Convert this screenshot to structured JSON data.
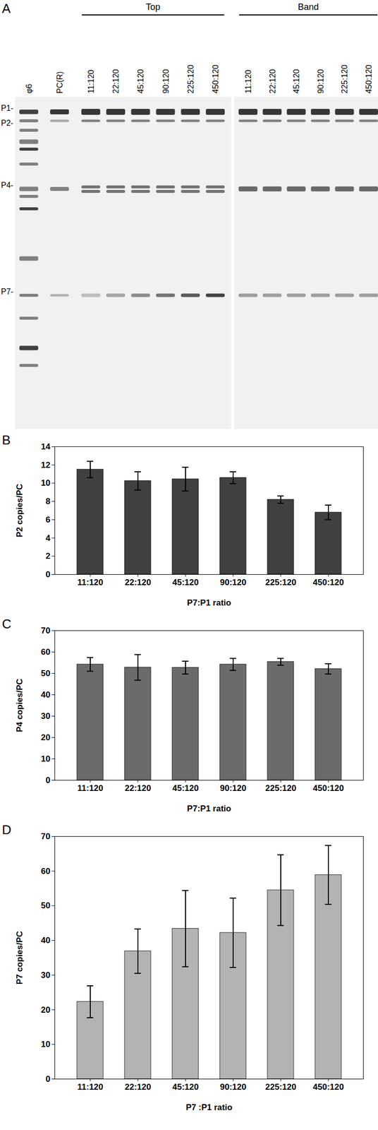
{
  "gel": {
    "panel_label": "A",
    "band_labels": [
      "P1-",
      "P2-",
      "P4-",
      "P7-"
    ],
    "single_lanes": [
      "φ6",
      "PC(R)"
    ],
    "groups": [
      {
        "label": "Top",
        "lanes": [
          "11:120",
          "22:120",
          "45:120",
          "90:120",
          "225:120",
          "450:120"
        ]
      },
      {
        "label": "Band",
        "lanes": [
          "11:120",
          "22:120",
          "45:120",
          "90:120",
          "225:120",
          "450:120"
        ]
      }
    ]
  },
  "chart_data": [
    {
      "type": "bar",
      "panel_label": "B",
      "y_label": "P2 copies/PC",
      "x_label": "P7:P1 ratio",
      "categories": [
        "11:120",
        "22:120",
        "45:120",
        "90:120",
        "225:120",
        "450:120"
      ],
      "values": [
        11.5,
        10.25,
        10.45,
        10.6,
        8.2,
        6.8
      ],
      "errors": [
        0.9,
        1.0,
        1.3,
        0.65,
        0.4,
        0.8
      ],
      "color": "#404040",
      "ylim": [
        0,
        14
      ],
      "yticks": [
        0,
        2,
        4,
        6,
        8,
        10,
        12,
        14
      ],
      "grid": false
    },
    {
      "type": "bar",
      "panel_label": "C",
      "y_label": "P4 copies/PC",
      "x_label": "P7:P1 ratio",
      "categories": [
        "11:120",
        "22:120",
        "45:120",
        "90:120",
        "225:120",
        "450:120"
      ],
      "values": [
        54.2,
        52.8,
        52.7,
        54.2,
        55.4,
        52.1
      ],
      "errors": [
        3.2,
        6.0,
        3.0,
        2.8,
        1.6,
        2.4
      ],
      "color": "#6b6b6b",
      "ylim": [
        0,
        70
      ],
      "yticks": [
        0,
        10,
        20,
        30,
        40,
        50,
        60,
        70
      ],
      "grid": false
    },
    {
      "type": "bar",
      "panel_label": "D",
      "y_label": "P7 copies/PC",
      "x_label": "P7 :P1 ratio",
      "categories": [
        "11:120",
        "22:120",
        "45:120",
        "90:120",
        "225:120",
        "450:120"
      ],
      "values": [
        22.3,
        36.9,
        43.4,
        42.2,
        54.5,
        58.9
      ],
      "errors": [
        4.6,
        6.4,
        11.0,
        10.0,
        10.2,
        8.5
      ],
      "color": "#b3b3b3",
      "ylim": [
        0,
        70
      ],
      "yticks": [
        0,
        10,
        20,
        30,
        40,
        50,
        60,
        70
      ],
      "grid": false
    }
  ]
}
